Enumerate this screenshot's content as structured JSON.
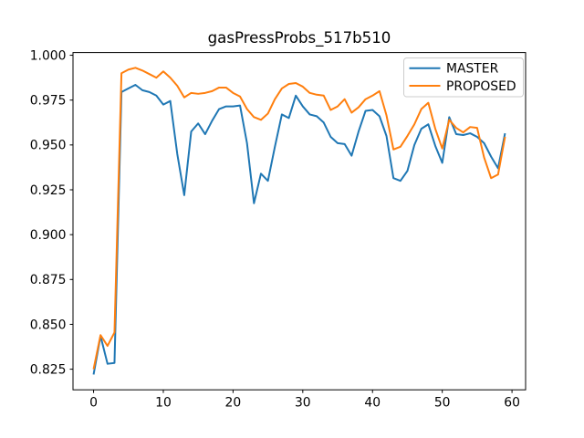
{
  "figure": {
    "background": "#ffffff",
    "text_color": "#000000",
    "axis_color": "#000000"
  },
  "chart_data": {
    "type": "line",
    "title": "gasPressProbs_517b510",
    "xlabel": "",
    "ylabel": "",
    "grid": false,
    "legend_position": "upper right",
    "xlim": [
      -2.95,
      61.95
    ],
    "ylim": [
      0.8135,
      1.0015
    ],
    "xticks": [
      0,
      10,
      20,
      30,
      40,
      50,
      60
    ],
    "xtick_labels": [
      "0",
      "10",
      "20",
      "30",
      "40",
      "50",
      "60"
    ],
    "yticks": [
      0.825,
      0.85,
      0.875,
      0.9,
      0.925,
      0.95,
      0.975,
      1.0
    ],
    "ytick_labels": [
      "0.825",
      "0.850",
      "0.875",
      "0.900",
      "0.925",
      "0.950",
      "0.975",
      "1.000"
    ],
    "x": [
      0,
      1,
      2,
      3,
      4,
      5,
      6,
      7,
      8,
      9,
      10,
      11,
      12,
      13,
      14,
      15,
      16,
      17,
      18,
      19,
      20,
      21,
      22,
      23,
      24,
      25,
      26,
      27,
      28,
      29,
      30,
      31,
      32,
      33,
      34,
      35,
      36,
      37,
      38,
      39,
      40,
      41,
      42,
      43,
      44,
      45,
      46,
      47,
      48,
      49,
      50,
      51,
      52,
      53,
      54,
      55,
      56,
      57,
      58,
      59
    ],
    "series": [
      {
        "name": "MASTER",
        "color": "#1f77b4",
        "values": [
          0.822,
          0.8435,
          0.828,
          0.8285,
          0.9795,
          0.9815,
          0.9835,
          0.9805,
          0.9795,
          0.9775,
          0.9725,
          0.9745,
          0.945,
          0.922,
          0.9575,
          0.962,
          0.956,
          0.9635,
          0.97,
          0.9715,
          0.9715,
          0.972,
          0.951,
          0.9175,
          0.934,
          0.93,
          0.949,
          0.967,
          0.965,
          0.9775,
          0.9715,
          0.967,
          0.966,
          0.9625,
          0.9545,
          0.951,
          0.9505,
          0.944,
          0.9575,
          0.969,
          0.9695,
          0.966,
          0.955,
          0.9315,
          0.93,
          0.9355,
          0.95,
          0.959,
          0.9615,
          0.9495,
          0.94,
          0.9655,
          0.956,
          0.9555,
          0.9565,
          0.9545,
          0.951,
          0.9435,
          0.937,
          0.9565
        ]
      },
      {
        "name": "PROPOSED",
        "color": "#ff7f0e",
        "values": [
          0.825,
          0.844,
          0.838,
          0.8455,
          0.99,
          0.992,
          0.993,
          0.9915,
          0.9895,
          0.9875,
          0.991,
          0.9875,
          0.983,
          0.9765,
          0.979,
          0.9785,
          0.979,
          0.98,
          0.982,
          0.982,
          0.979,
          0.977,
          0.97,
          0.9655,
          0.964,
          0.9675,
          0.9755,
          0.9815,
          0.984,
          0.9845,
          0.9825,
          0.979,
          0.978,
          0.9775,
          0.9695,
          0.9715,
          0.9755,
          0.968,
          0.971,
          0.9755,
          0.9775,
          0.98,
          0.9665,
          0.9475,
          0.949,
          0.955,
          0.9615,
          0.97,
          0.9735,
          0.959,
          0.948,
          0.964,
          0.9595,
          0.957,
          0.96,
          0.9595,
          0.943,
          0.9315,
          0.9335,
          0.9545
        ]
      }
    ]
  }
}
